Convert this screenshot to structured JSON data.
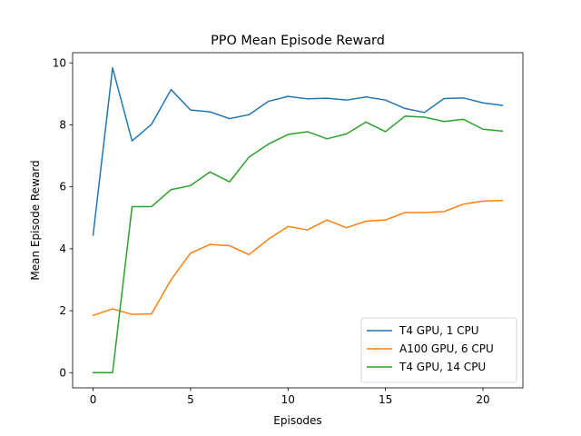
{
  "chart_data": {
    "type": "line",
    "title": "PPO Mean Episode Reward",
    "xlabel": "Episodes",
    "ylabel": "Mean Episode Reward",
    "xlim": [
      -1.05,
      22.05
    ],
    "ylim": [
      -0.49,
      10.33
    ],
    "xticks": [
      0,
      5,
      10,
      15,
      20
    ],
    "yticks": [
      0,
      2,
      4,
      6,
      8,
      10
    ],
    "grid": false,
    "legend_position": "lower right",
    "x": [
      0,
      1,
      2,
      3,
      4,
      5,
      6,
      7,
      8,
      9,
      10,
      11,
      12,
      13,
      14,
      15,
      16,
      17,
      18,
      19,
      20,
      21
    ],
    "series": [
      {
        "name": "T4 GPU, 1 CPU",
        "color": "#1f77b4",
        "values": [
          4.44,
          9.84,
          7.48,
          8.02,
          9.14,
          8.48,
          8.42,
          8.2,
          8.33,
          8.76,
          8.92,
          8.84,
          8.86,
          8.8,
          8.9,
          8.8,
          8.53,
          8.4,
          8.85,
          8.87,
          8.71,
          8.63
        ]
      },
      {
        "name": "A100 GPU, 6 CPU",
        "color": "#ff7f0e",
        "values": [
          1.85,
          2.06,
          1.88,
          1.9,
          3.0,
          3.86,
          4.14,
          4.1,
          3.81,
          4.31,
          4.72,
          4.61,
          4.93,
          4.68,
          4.89,
          4.93,
          5.17,
          5.17,
          5.2,
          5.44,
          5.54,
          5.56
        ]
      },
      {
        "name": "T4 GPU, 14 CPU",
        "color": "#2ca02c",
        "values": [
          0.0,
          0.0,
          5.36,
          5.36,
          5.91,
          6.04,
          6.48,
          6.16,
          6.96,
          7.38,
          7.69,
          7.78,
          7.55,
          7.71,
          8.09,
          7.78,
          8.28,
          8.25,
          8.11,
          8.18,
          7.86,
          7.8
        ]
      }
    ]
  }
}
